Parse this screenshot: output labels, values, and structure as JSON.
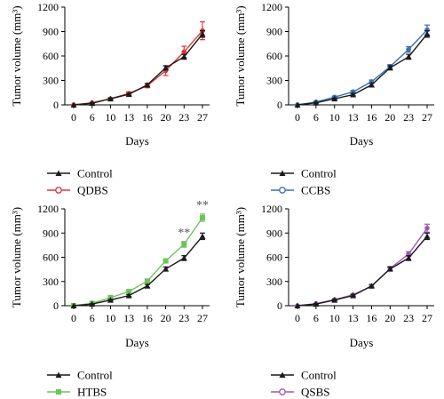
{
  "chart_data": [
    {
      "type": "line",
      "panel": "top-left",
      "xlabel": "Days",
      "ylabel": "Tumor volume (mm³)",
      "x": [
        0,
        6,
        10,
        13,
        16,
        20,
        23,
        27
      ],
      "ylim": [
        0,
        1200
      ],
      "yticks": [
        0,
        300,
        600,
        900,
        1200
      ],
      "legend_placement": "bottom",
      "series": [
        {
          "name": "Control",
          "color": "#1a1a1a",
          "marker": "triangle",
          "values": [
            0,
            20,
            75,
            130,
            245,
            455,
            590,
            870
          ],
          "errors": [
            0,
            5,
            8,
            12,
            18,
            25,
            30,
            40
          ]
        },
        {
          "name": "QDBS",
          "color": "#e0343a",
          "marker": "circle",
          "values": [
            0,
            25,
            75,
            140,
            235,
            420,
            650,
            910
          ],
          "errors": [
            0,
            6,
            10,
            20,
            25,
            60,
            70,
            110
          ]
        }
      ],
      "annotations": []
    },
    {
      "type": "line",
      "panel": "top-right",
      "xlabel": "Days",
      "ylabel": "Tumor volume (mm³)",
      "x": [
        0,
        6,
        10,
        13,
        16,
        20,
        23,
        27
      ],
      "ylim": [
        0,
        1200
      ],
      "yticks": [
        0,
        300,
        600,
        900,
        1200
      ],
      "legend_placement": "bottom",
      "series": [
        {
          "name": "Control",
          "color": "#1a1a1a",
          "marker": "triangle",
          "values": [
            0,
            25,
            75,
            125,
            245,
            455,
            590,
            870
          ],
          "errors": [
            0,
            5,
            8,
            12,
            18,
            25,
            30,
            40
          ]
        },
        {
          "name": "CCBS",
          "color": "#3a6fb5",
          "marker": "circle",
          "values": [
            0,
            35,
            95,
            160,
            285,
            470,
            680,
            920
          ],
          "errors": [
            0,
            5,
            10,
            15,
            20,
            25,
            35,
            60
          ]
        }
      ],
      "annotations": []
    },
    {
      "type": "line",
      "panel": "bottom-left",
      "xlabel": "Days",
      "ylabel": "Tumor volume (mm³)",
      "x": [
        0,
        6,
        10,
        13,
        16,
        20,
        23,
        27
      ],
      "ylim": [
        0,
        1200
      ],
      "yticks": [
        0,
        300,
        600,
        900,
        1200
      ],
      "legend_placement": "bottom",
      "series": [
        {
          "name": "Control",
          "color": "#1a1a1a",
          "marker": "triangle",
          "values": [
            0,
            20,
            70,
            125,
            245,
            455,
            590,
            860
          ],
          "errors": [
            0,
            5,
            8,
            12,
            18,
            25,
            30,
            40
          ]
        },
        {
          "name": "HTBS",
          "color": "#6cc45a",
          "marker": "square",
          "values": [
            0,
            30,
            100,
            175,
            305,
            555,
            760,
            1090
          ],
          "errors": [
            0,
            5,
            10,
            15,
            20,
            25,
            35,
            45
          ]
        }
      ],
      "annotations": [
        {
          "x": 23,
          "text": "**"
        },
        {
          "x": 27,
          "text": "**"
        }
      ]
    },
    {
      "type": "line",
      "panel": "bottom-right",
      "xlabel": "Days",
      "ylabel": "Tumor volume (mm³)",
      "x": [
        0,
        6,
        10,
        13,
        16,
        20,
        23,
        27
      ],
      "ylim": [
        0,
        1200
      ],
      "yticks": [
        0,
        300,
        600,
        900,
        1200
      ],
      "legend_placement": "bottom",
      "series": [
        {
          "name": "Control",
          "color": "#1a1a1a",
          "marker": "triangle",
          "values": [
            0,
            20,
            70,
            125,
            245,
            455,
            590,
            860
          ],
          "errors": [
            0,
            5,
            8,
            12,
            18,
            25,
            30,
            40
          ]
        },
        {
          "name": "QSBS",
          "color": "#9b59b6",
          "marker": "circle",
          "values": [
            0,
            25,
            75,
            135,
            240,
            460,
            640,
            960
          ],
          "errors": [
            0,
            5,
            8,
            12,
            18,
            25,
            30,
            50
          ]
        }
      ],
      "annotations": []
    }
  ]
}
